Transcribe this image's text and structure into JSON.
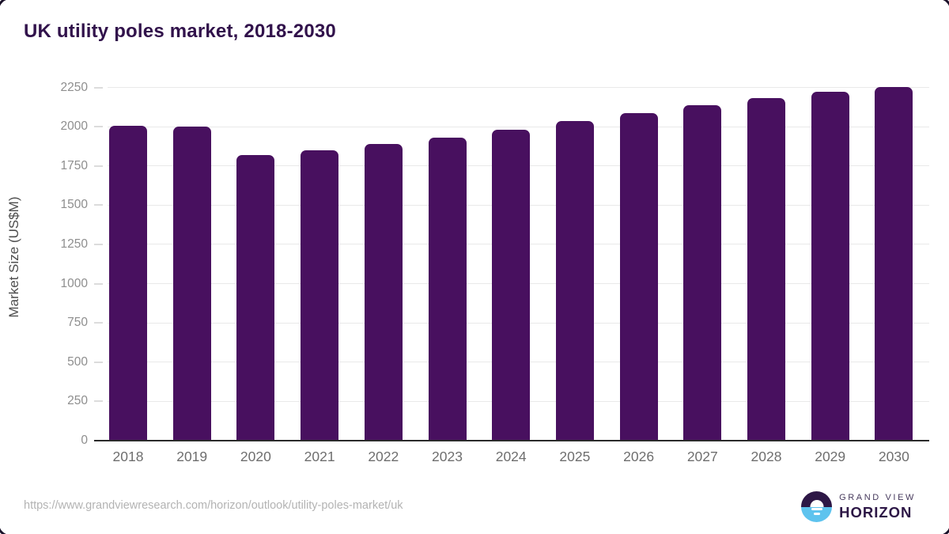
{
  "header": {
    "title": "UK utility poles market, 2018-2030"
  },
  "chart_data": {
    "type": "bar",
    "title": "UK utility poles market, 2018-2030",
    "categories": [
      "2018",
      "2019",
      "2020",
      "2021",
      "2022",
      "2023",
      "2024",
      "2025",
      "2026",
      "2027",
      "2028",
      "2029",
      "2030"
    ],
    "values": [
      2005,
      2000,
      1820,
      1850,
      1890,
      1930,
      1980,
      2035,
      2085,
      2135,
      2180,
      2220,
      2255
    ],
    "xlabel": "",
    "ylabel": "Market Size (US$M)",
    "ylim": [
      0,
      2355
    ],
    "yticks": [
      0,
      250,
      500,
      750,
      1000,
      1250,
      1500,
      1750,
      2000,
      2250
    ],
    "grid": true,
    "legend": null,
    "bar_color": "#48105f"
  },
  "footer": {
    "source_url": "https://www.grandviewresearch.com/horizon/outlook/utility-poles-market/uk",
    "logo": {
      "line1": "GRAND VIEW",
      "line2": "HORIZON"
    }
  },
  "colors": {
    "bar": "#48105f",
    "title": "#31124b",
    "axis_line": "#2b2b2b",
    "gridline": "#e9e9e9",
    "tick_label": "#8e8e8e",
    "x_label": "#6e6e6e",
    "logo_purple": "#2d1746",
    "logo_blue": "#5ec3ee"
  }
}
